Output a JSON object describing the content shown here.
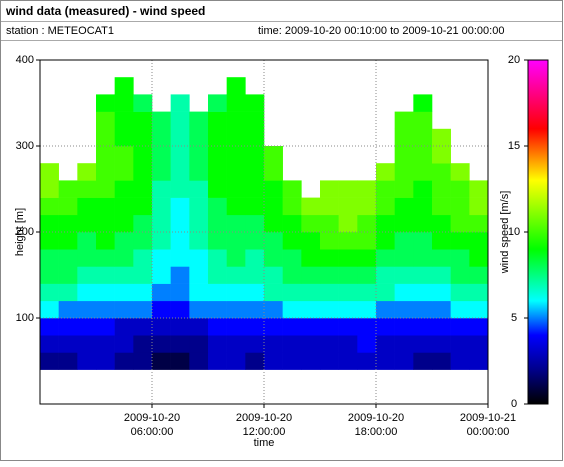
{
  "chart_data": {
    "type": "heatmap",
    "title": "wind data (measured) - wind speed",
    "station": "station : METEOCAT1",
    "period": "time: 2009-10-20 00:10:00 to 2009-10-21 00:00:00",
    "xlabel": "time",
    "ylabel": "height [m]",
    "colorbar_label": "wind speed [m/s]",
    "xlim": [
      0,
      24
    ],
    "xticks": [
      {
        "value": 6,
        "label": [
          "2009-10-20",
          "06:00:00"
        ]
      },
      {
        "value": 12,
        "label": [
          "2009-10-20",
          "12:00:00"
        ]
      },
      {
        "value": 18,
        "label": [
          "2009-10-20",
          "18:00:00"
        ]
      },
      {
        "value": 24,
        "label": [
          "2009-10-21",
          "00:00:00"
        ]
      }
    ],
    "ylim": [
      0,
      400
    ],
    "yticks": [
      100,
      200,
      300,
      400
    ],
    "clim": [
      0,
      20
    ],
    "cticks": [
      0,
      5,
      10,
      15,
      20
    ],
    "grid": true,
    "colormap": [
      {
        "value": 0,
        "color": "#000000"
      },
      {
        "value": 2,
        "color": "#00008b"
      },
      {
        "value": 4,
        "color": "#0000ff"
      },
      {
        "value": 6,
        "color": "#00ffff"
      },
      {
        "value": 9,
        "color": "#00ff00"
      },
      {
        "value": 13,
        "color": "#ffff00"
      },
      {
        "value": 16,
        "color": "#ff0000"
      },
      {
        "value": 20,
        "color": "#ff00ff"
      }
    ],
    "x": [
      0,
      1,
      2,
      3,
      4,
      5,
      6,
      7,
      8,
      9,
      10,
      11,
      12,
      13,
      14,
      15,
      16,
      17,
      18,
      19,
      20,
      21,
      22,
      23
    ],
    "x_step": 1,
    "y": [
      40,
      60,
      80,
      100,
      120,
      140,
      160,
      180,
      200,
      220,
      240,
      260,
      280,
      300,
      320,
      340,
      360
    ],
    "y_step": 20,
    "z": [
      [
        2,
        2,
        3,
        3,
        2,
        2,
        1,
        1,
        2,
        3,
        3,
        2,
        3,
        3,
        3,
        3,
        3,
        3,
        3,
        3,
        2,
        2,
        3,
        3
      ],
      [
        3,
        3,
        3,
        3,
        3,
        2,
        2,
        2,
        2,
        3,
        3,
        3,
        3,
        3,
        3,
        3,
        3,
        4,
        3,
        3,
        3,
        3,
        3,
        3
      ],
      [
        4,
        4,
        4,
        4,
        3,
        3,
        3,
        3,
        3,
        4,
        4,
        4,
        4,
        4,
        4,
        4,
        4,
        4,
        4,
        4,
        4,
        4,
        4,
        4
      ],
      [
        6,
        5,
        5,
        5,
        5,
        5,
        4,
        4,
        5,
        5,
        5,
        5,
        5,
        6,
        6,
        6,
        6,
        6,
        5,
        5,
        5,
        5,
        6,
        6
      ],
      [
        7,
        7,
        6,
        6,
        6,
        6,
        5,
        5,
        6,
        6,
        6,
        6,
        7,
        7,
        7,
        7,
        7,
        7,
        7,
        6,
        6,
        6,
        7,
        7
      ],
      [
        8,
        8,
        7,
        7,
        7,
        7,
        6,
        5,
        6,
        7,
        7,
        7,
        7,
        8,
        8,
        8,
        8,
        8,
        7,
        7,
        7,
        7,
        8,
        8
      ],
      [
        8,
        8,
        8,
        8,
        8,
        7,
        6,
        6,
        6,
        7,
        8,
        7,
        8,
        8,
        9,
        9,
        9,
        9,
        8,
        8,
        8,
        8,
        8,
        9
      ],
      [
        9,
        9,
        8,
        9,
        8,
        8,
        7,
        6,
        7,
        8,
        8,
        8,
        8,
        9,
        9,
        10,
        10,
        10,
        9,
        8,
        8,
        9,
        9,
        9
      ],
      [
        9,
        9,
        9,
        9,
        9,
        8,
        7,
        6,
        7,
        8,
        8,
        8,
        9,
        9,
        10,
        10,
        11,
        10,
        9,
        9,
        9,
        9,
        10,
        10
      ],
      [
        10,
        10,
        9,
        9,
        9,
        9,
        7,
        6,
        7,
        8,
        9,
        9,
        9,
        10,
        11,
        11,
        11,
        11,
        10,
        9,
        9,
        10,
        10,
        11
      ],
      [
        11,
        10,
        10,
        10,
        9,
        9,
        7,
        7,
        7,
        9,
        9,
        9,
        9,
        10,
        null,
        11,
        11,
        11,
        10,
        10,
        9,
        10,
        10,
        11
      ],
      [
        11,
        null,
        11,
        10,
        10,
        9,
        8,
        7,
        8,
        9,
        9,
        9,
        10,
        null,
        null,
        null,
        null,
        null,
        11,
        10,
        10,
        10,
        11,
        null
      ],
      [
        null,
        null,
        null,
        10,
        10,
        9,
        8,
        7,
        8,
        9,
        9,
        9,
        10,
        null,
        null,
        null,
        null,
        null,
        null,
        10,
        10,
        11,
        null,
        null
      ],
      [
        null,
        null,
        null,
        10,
        9,
        9,
        8,
        7,
        8,
        9,
        9,
        9,
        null,
        null,
        null,
        null,
        null,
        null,
        null,
        10,
        10,
        11,
        null,
        null
      ],
      [
        null,
        null,
        null,
        10,
        9,
        9,
        8,
        7,
        8,
        9,
        9,
        9,
        null,
        null,
        null,
        null,
        null,
        null,
        null,
        10,
        10,
        null,
        null,
        null
      ],
      [
        null,
        null,
        null,
        9,
        9,
        8,
        null,
        7,
        null,
        8,
        9,
        9,
        null,
        null,
        null,
        null,
        null,
        null,
        null,
        null,
        9,
        null,
        null,
        null
      ],
      [
        null,
        null,
        null,
        null,
        9,
        null,
        null,
        null,
        null,
        null,
        9,
        null,
        null,
        null,
        null,
        null,
        null,
        null,
        null,
        null,
        null,
        null,
        null,
        null
      ]
    ]
  }
}
